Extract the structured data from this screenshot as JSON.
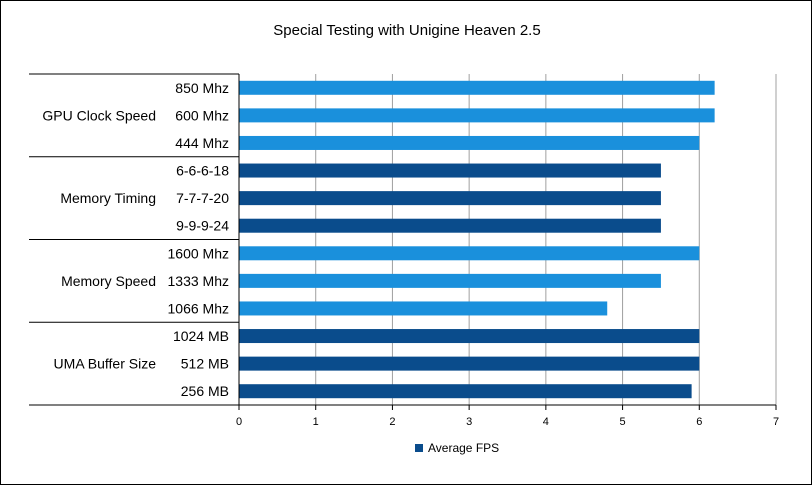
{
  "chart_data": {
    "type": "bar",
    "orientation": "horizontal",
    "title": "Special Testing with Unigine Heaven 2.5",
    "xlabel": "",
    "ylabel": "",
    "xlim": [
      0,
      7
    ],
    "x_ticks": [
      0,
      1,
      2,
      3,
      4,
      5,
      6,
      7
    ],
    "grid": "vertical-major",
    "legend": {
      "placement": "bottom",
      "entries": [
        "Average FPS"
      ]
    },
    "colors": {
      "light_bar": "#1a90dc",
      "dark_bar": "#0a4c8c",
      "gridline": "#a0a0a0"
    },
    "groups": [
      {
        "label": "GPU Clock Speed",
        "color": "#1a90dc",
        "items": [
          {
            "label": "850 Mhz",
            "value": 6.2
          },
          {
            "label": "600 Mhz",
            "value": 6.2
          },
          {
            "label": "444 Mhz",
            "value": 6.0
          }
        ]
      },
      {
        "label": "Memory Timing",
        "color": "#0a4c8c",
        "items": [
          {
            "label": "6-6-6-18",
            "value": 5.5
          },
          {
            "label": "7-7-7-20",
            "value": 5.5
          },
          {
            "label": "9-9-9-24",
            "value": 5.5
          }
        ]
      },
      {
        "label": "Memory Speed",
        "color": "#1a90dc",
        "items": [
          {
            "label": "1600 Mhz",
            "value": 6.0
          },
          {
            "label": "1333 Mhz",
            "value": 5.5
          },
          {
            "label": "1066 Mhz",
            "value": 4.8
          }
        ]
      },
      {
        "label": "UMA Buffer Size",
        "color": "#0a4c8c",
        "items": [
          {
            "label": "1024 MB",
            "value": 6.0
          },
          {
            "label": "512 MB",
            "value": 6.0
          },
          {
            "label": "256 MB",
            "value": 5.9
          }
        ]
      }
    ]
  }
}
